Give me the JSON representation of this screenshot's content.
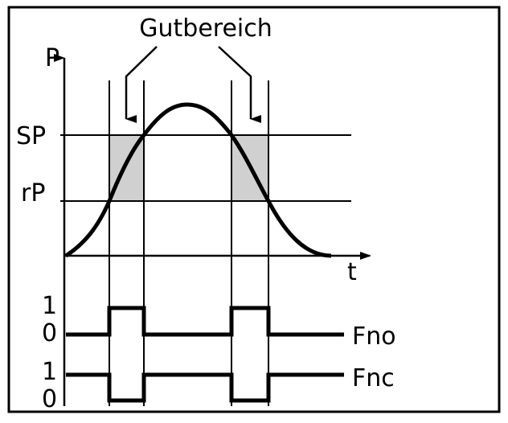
{
  "title": "Gutbereich",
  "axes": {
    "y_label": "P",
    "x_label": "t",
    "levels": [
      "SP",
      "rP"
    ]
  },
  "signals": [
    {
      "name": "Fno",
      "high_label": "1",
      "low_label": "0"
    },
    {
      "name": "Fnc",
      "high_label": "1",
      "low_label": "0"
    }
  ]
}
